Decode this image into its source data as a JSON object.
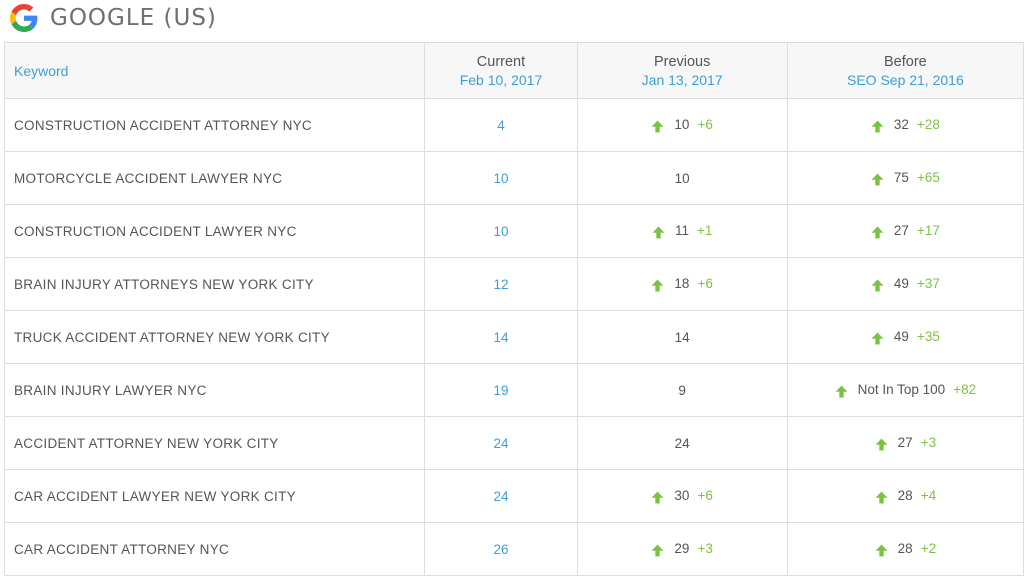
{
  "header": {
    "title": "GOOGLE (US)",
    "logo_icon": "google-g-icon"
  },
  "colors": {
    "accent_blue": "#3b9fd6",
    "up_green": "#7cc242",
    "text": "#555555"
  },
  "columns": {
    "keyword": "Keyword",
    "current": {
      "label": "Current",
      "date": "Feb 10, 2017"
    },
    "previous": {
      "label": "Previous",
      "date": "Jan 13, 2017"
    },
    "before": {
      "label": "Before",
      "date": "SEO Sep 21, 2016"
    }
  },
  "rows": [
    {
      "keyword": "CONSTRUCTION ACCIDENT ATTORNEY NYC",
      "current": "4",
      "previous": {
        "value": "10",
        "change": "+6",
        "up": true
      },
      "before": {
        "value": "32",
        "change": "+28",
        "up": true
      }
    },
    {
      "keyword": "MOTORCYCLE ACCIDENT LAWYER NYC",
      "current": "10",
      "previous": {
        "value": "10",
        "change": "",
        "up": false
      },
      "before": {
        "value": "75",
        "change": "+65",
        "up": true
      }
    },
    {
      "keyword": "CONSTRUCTION ACCIDENT LAWYER NYC",
      "current": "10",
      "previous": {
        "value": "11",
        "change": "+1",
        "up": true
      },
      "before": {
        "value": "27",
        "change": "+17",
        "up": true
      }
    },
    {
      "keyword": "BRAIN INJURY ATTORNEYS NEW YORK CITY",
      "current": "12",
      "previous": {
        "value": "18",
        "change": "+6",
        "up": true
      },
      "before": {
        "value": "49",
        "change": "+37",
        "up": true
      }
    },
    {
      "keyword": "TRUCK ACCIDENT ATTORNEY NEW YORK CITY",
      "current": "14",
      "previous": {
        "value": "14",
        "change": "",
        "up": false
      },
      "before": {
        "value": "49",
        "change": "+35",
        "up": true
      }
    },
    {
      "keyword": "BRAIN INJURY LAWYER NYC",
      "current": "19",
      "previous": {
        "value": "9",
        "change": "",
        "up": false
      },
      "before": {
        "value": "Not In Top 100",
        "change": "+82",
        "up": true
      }
    },
    {
      "keyword": "ACCIDENT ATTORNEY NEW YORK CITY",
      "current": "24",
      "previous": {
        "value": "24",
        "change": "",
        "up": false
      },
      "before": {
        "value": "27",
        "change": "+3",
        "up": true
      }
    },
    {
      "keyword": "CAR ACCIDENT LAWYER NEW YORK CITY",
      "current": "24",
      "previous": {
        "value": "30",
        "change": "+6",
        "up": true
      },
      "before": {
        "value": "28",
        "change": "+4",
        "up": true
      }
    },
    {
      "keyword": "CAR ACCIDENT ATTORNEY NYC",
      "current": "26",
      "previous": {
        "value": "29",
        "change": "+3",
        "up": true
      },
      "before": {
        "value": "28",
        "change": "+2",
        "up": true
      }
    }
  ]
}
